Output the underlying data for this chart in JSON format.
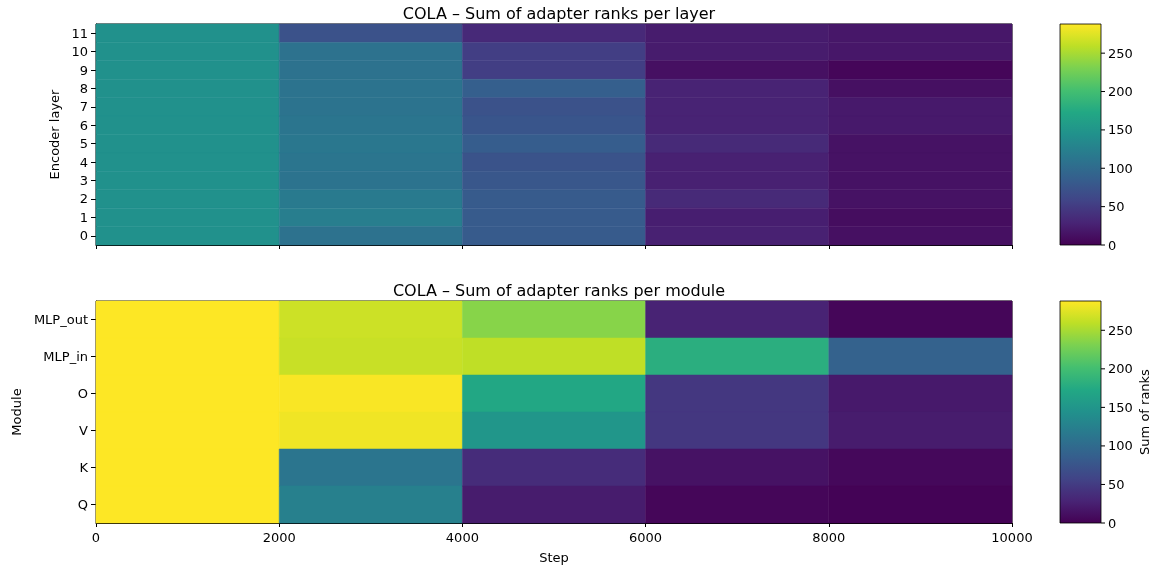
{
  "chart_data": [
    {
      "type": "heatmap",
      "title": "COLA – Sum of adapter ranks per layer",
      "ylabel": "Encoder layer",
      "x": [
        1000,
        3000,
        5000,
        7000,
        9000
      ],
      "xlim": [
        0,
        10000
      ],
      "xticks": [
        0,
        2000,
        4000,
        6000,
        8000,
        10000
      ],
      "tick_labels": "y",
      "y_categories": [
        "11",
        "10",
        "9",
        "8",
        "7",
        "6",
        "5",
        "4",
        "3",
        "2",
        "1",
        "0"
      ],
      "clim": [
        0,
        288
      ],
      "cticks": [
        0,
        50,
        100,
        150,
        200,
        250
      ],
      "cells": [
        [
          144,
          72,
          33,
          22,
          18
        ],
        [
          144,
          108,
          52,
          22,
          18
        ],
        [
          144,
          108,
          52,
          12,
          4
        ],
        [
          144,
          110,
          86,
          28,
          12
        ],
        [
          144,
          110,
          72,
          28,
          20
        ],
        [
          144,
          112,
          76,
          28,
          20
        ],
        [
          144,
          114,
          84,
          34,
          14
        ],
        [
          144,
          112,
          74,
          26,
          14
        ],
        [
          144,
          110,
          78,
          26,
          14
        ],
        [
          144,
          118,
          82,
          34,
          14
        ],
        [
          144,
          122,
          82,
          24,
          10
        ],
        [
          144,
          108,
          82,
          26,
          12
        ]
      ]
    },
    {
      "type": "heatmap",
      "title": "COLA – Sum of adapter ranks per module",
      "xlabel": "Step",
      "ylabel": "Module",
      "clabel": "Sum of ranks",
      "x": [
        1000,
        3000,
        5000,
        7000,
        9000
      ],
      "xlim": [
        0,
        10000
      ],
      "xticks": [
        0,
        2000,
        4000,
        6000,
        8000,
        10000
      ],
      "y_categories": [
        "MLP_out",
        "MLP_in",
        "O",
        "V",
        "K",
        "Q"
      ],
      "clim": [
        0,
        288
      ],
      "cticks": [
        0,
        50,
        100,
        150,
        200,
        250
      ],
      "cells": [
        [
          288,
          266,
          236,
          28,
          4
        ],
        [
          288,
          264,
          260,
          180,
          90
        ],
        [
          288,
          286,
          172,
          46,
          20
        ],
        [
          288,
          282,
          150,
          46,
          22
        ],
        [
          288,
          112,
          36,
          14,
          6
        ],
        [
          288,
          124,
          22,
          4,
          2
        ]
      ]
    }
  ]
}
